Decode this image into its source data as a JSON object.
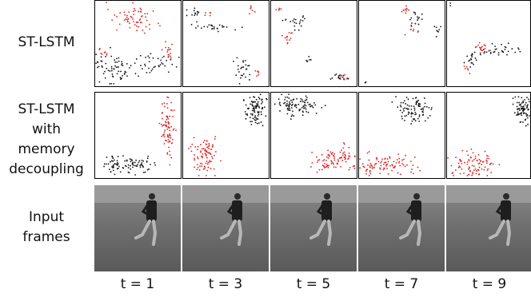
{
  "rows": [
    {
      "label": [
        "ST-LSTM"
      ]
    },
    {
      "label": [
        "ST-LSTM",
        "with",
        "memory",
        "decoupling"
      ]
    },
    {
      "label": [
        "Input",
        "frames"
      ]
    }
  ],
  "columns": [
    "t = 1",
    "t = 3",
    "t = 5",
    "t = 7",
    "t = 9"
  ]
}
